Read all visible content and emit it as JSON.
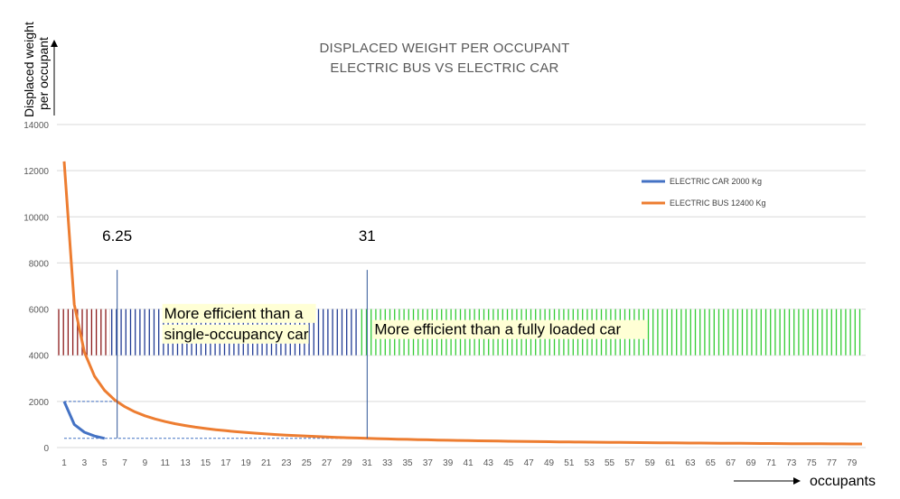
{
  "chart_data": {
    "type": "line",
    "title": "DISPLACED WEIGHT PER OCCUPANT",
    "subtitle": "ELECTRIC BUS VS ELECTRIC CAR",
    "ylabel_line1": "Displaced weight",
    "ylabel_line2": "per occupant",
    "xlabel": "occupants",
    "ylim": [
      0,
      14000
    ],
    "yticks": [
      "0",
      "2000",
      "4000",
      "6000",
      "8000",
      "10000",
      "12000",
      "14000"
    ],
    "ytick_values": [
      0,
      2000,
      4000,
      6000,
      8000,
      10000,
      12000,
      14000
    ],
    "xlim": [
      1,
      80
    ],
    "xticks": [
      "1",
      "3",
      "5",
      "7",
      "9",
      "11",
      "13",
      "15",
      "17",
      "19",
      "21",
      "23",
      "25",
      "27",
      "29",
      "31",
      "33",
      "35",
      "37",
      "39",
      "41",
      "43",
      "45",
      "47",
      "49",
      "51",
      "53",
      "55",
      "57",
      "59",
      "61",
      "63",
      "65",
      "67",
      "69",
      "71",
      "73",
      "75",
      "77",
      "79"
    ],
    "grid": true,
    "legend_position": "right",
    "series": [
      {
        "name": "ELECTRIC CAR 2000 Kg",
        "color": "#4472C4",
        "weight": 2000,
        "x_range": [
          1,
          5
        ]
      },
      {
        "name": "ELECTRIC BUS 12400 Kg",
        "color": "#ED7D31",
        "weight": 12400,
        "x_range": [
          1,
          80
        ]
      }
    ],
    "markers": [
      {
        "label": "6.25",
        "x": 6.25
      },
      {
        "label": "31",
        "x": 31
      }
    ],
    "zones": [
      {
        "x_range": [
          1,
          6
        ],
        "y_range": [
          4000,
          6000
        ],
        "color": "#8B1A1A",
        "text": ""
      },
      {
        "x_range": [
          6.25,
          31
        ],
        "y_range": [
          4000,
          6000
        ],
        "color": "#1F3A93",
        "text_line1": "More efficient than a",
        "text_line2": "single-occupancy car"
      },
      {
        "x_range": [
          31,
          80
        ],
        "y_range": [
          4000,
          6000
        ],
        "color": "#33CC33",
        "text_line1": "More efficient than a fully loaded car"
      }
    ],
    "reference_lines": [
      {
        "from_x": 1,
        "to_x": 6.25,
        "y": 2000
      },
      {
        "from_x": 1,
        "to_x": 31,
        "y": 400
      }
    ]
  }
}
